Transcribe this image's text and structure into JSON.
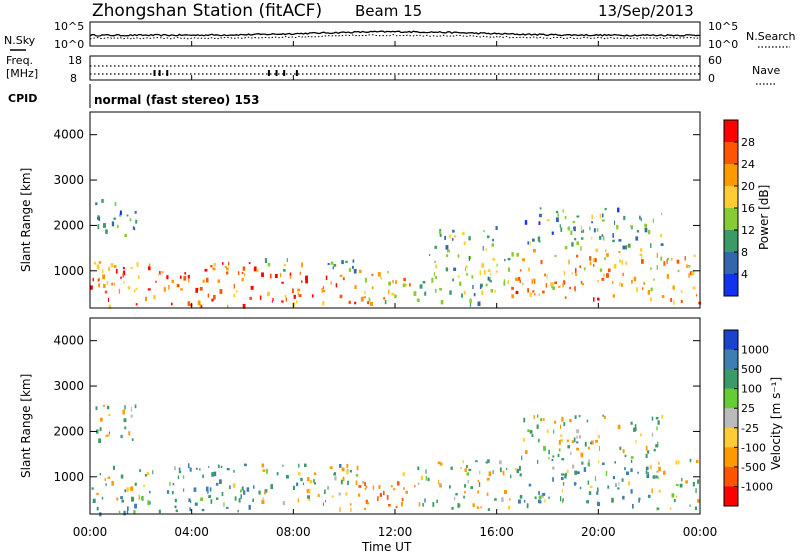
{
  "header": {
    "title": "Zhongshan Station (fitACF)",
    "beam": "Beam 15",
    "date": "13/Sep/2013"
  },
  "noise_panel": {
    "left_label": "N.Sky",
    "right_label": "N.Search",
    "left_ticks": [
      "10^5",
      "10^0"
    ],
    "right_ticks": [
      "10^5",
      "10^0"
    ]
  },
  "freq_panel": {
    "left_label_1": "Freq.",
    "left_label_2": "[MHz]",
    "right_label": "Nave",
    "left_ticks": [
      "18",
      "8"
    ],
    "right_ticks": [
      "60",
      "0"
    ]
  },
  "cpid": {
    "label": "CPID",
    "text": "normal (fast stereo) 153"
  },
  "power_panel": {
    "ylabel": "Slant Range [km]",
    "yticks": [
      "4000",
      "3000",
      "2000",
      "1000"
    ],
    "colorbar_label": "Power [dB]",
    "colorbar_ticks": [
      "28",
      "24",
      "20",
      "16",
      "12",
      "8",
      "4"
    ],
    "colorbar_colors": [
      "#ff0000",
      "#ff5500",
      "#ff9900",
      "#ffcc33",
      "#88cc33",
      "#3c9a68",
      "#3366aa",
      "#1133ee"
    ]
  },
  "velocity_panel": {
    "ylabel": "Slant Range [km]",
    "yticks": [
      "4000",
      "3000",
      "2000",
      "1000"
    ],
    "colorbar_label": "Velocity [m s⁻¹]",
    "colorbar_ticks": [
      "1000",
      "500",
      "100",
      "25",
      "-25",
      "-100",
      "-500",
      "-1000"
    ],
    "colorbar_colors": [
      "#1a44cc",
      "#3f7fb0",
      "#3c9a68",
      "#66cc33",
      "#bbbbbb",
      "#ffcc33",
      "#ff9900",
      "#ff5500",
      "#ff0000"
    ]
  },
  "xaxis": {
    "label": "Time UT",
    "ticks": [
      "00:00",
      "04:00",
      "08:00",
      "12:00",
      "16:00",
      "20:00",
      "00:00"
    ]
  },
  "chart_data": [
    {
      "type": "heatmap",
      "title": "Zhongshan Station (fitACF)",
      "xlabel": "Time UT",
      "ylabel": "Slant Range [km]",
      "xlim_hours": [
        0,
        24
      ],
      "ylim_km": [
        180,
        4500
      ],
      "colorbar": "Power [dB]",
      "clim": [
        0,
        30
      ],
      "regions": [
        {
          "t0": 0.0,
          "t1": 2.2,
          "r0": 200,
          "r1": 1300,
          "value": 22
        },
        {
          "t0": 0.2,
          "t1": 1.8,
          "r0": 1800,
          "r1": 2700,
          "value": 9
        },
        {
          "t0": 2.2,
          "t1": 6.5,
          "r0": 250,
          "r1": 1200,
          "value": 24
        },
        {
          "t0": 6.5,
          "t1": 10.5,
          "r0": 300,
          "r1": 1000,
          "value": 24
        },
        {
          "t0": 6.5,
          "t1": 10.5,
          "r0": 1000,
          "r1": 1300,
          "value": 12
        },
        {
          "t0": 10.5,
          "t1": 12.8,
          "r0": 300,
          "r1": 1100,
          "value": 18
        },
        {
          "t0": 12.8,
          "t1": 16.5,
          "r0": 300,
          "r1": 1400,
          "value": 12
        },
        {
          "t0": 13.5,
          "t1": 16.0,
          "r0": 1400,
          "r1": 2000,
          "value": 10
        },
        {
          "t0": 16.5,
          "t1": 22.0,
          "r0": 400,
          "r1": 1500,
          "value": 20
        },
        {
          "t0": 17.0,
          "t1": 22.5,
          "r0": 1500,
          "r1": 2400,
          "value": 9
        },
        {
          "t0": 22.0,
          "t1": 24.0,
          "r0": 300,
          "r1": 1400,
          "value": 18
        }
      ]
    },
    {
      "type": "heatmap",
      "xlabel": "Time UT",
      "ylabel": "Slant Range [km]",
      "xlim_hours": [
        0,
        24
      ],
      "ylim_km": [
        180,
        4500
      ],
      "colorbar": "Velocity [m s⁻¹]",
      "clim": [
        -1000,
        1000
      ],
      "regions": [
        {
          "t0": 0.0,
          "t1": 2.2,
          "r0": 200,
          "r1": 1300,
          "value": 150
        },
        {
          "t0": 0.2,
          "t1": 1.8,
          "r0": 1800,
          "r1": 2700,
          "value": 40
        },
        {
          "t0": 2.2,
          "t1": 6.5,
          "r0": 250,
          "r1": 1300,
          "value": 400
        },
        {
          "t0": 6.5,
          "t1": 10.5,
          "r0": 300,
          "r1": 1300,
          "value": 120
        },
        {
          "t0": 10.5,
          "t1": 12.8,
          "r0": 300,
          "r1": 1100,
          "value": -450
        },
        {
          "t0": 12.8,
          "t1": 16.5,
          "r0": 300,
          "r1": 1400,
          "value": 80
        },
        {
          "t0": 16.5,
          "t1": 22.0,
          "r0": 400,
          "r1": 1500,
          "value": 350
        },
        {
          "t0": 17.0,
          "t1": 22.5,
          "r0": 1500,
          "r1": 2400,
          "value": 60
        },
        {
          "t0": 22.0,
          "t1": 24.0,
          "r0": 300,
          "r1": 1400,
          "value": 70
        }
      ]
    }
  ]
}
